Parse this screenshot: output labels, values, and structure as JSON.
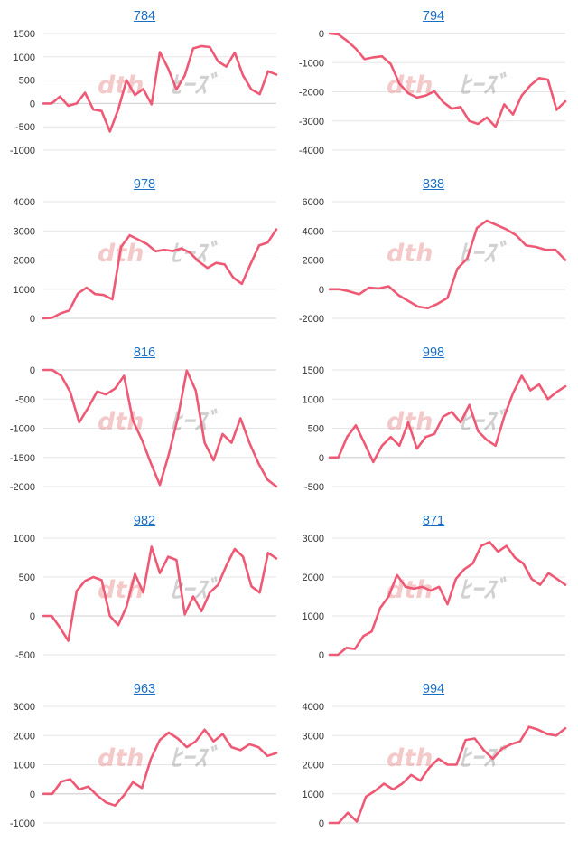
{
  "page": {
    "title": "Price trend chart grid"
  },
  "colors": {
    "line": "#ee5a75",
    "grid": "#e6e6e6",
    "title": "#1a6fc4",
    "label": "#333333"
  },
  "watermark": {
    "left_text": "dth",
    "right_text": "ﾋｰｽﾞ"
  },
  "chart_data": [
    {
      "type": "line",
      "title": "784",
      "yticks": [
        -1000,
        -500,
        0,
        500,
        1000,
        1500
      ],
      "ylim": [
        -1000,
        1500
      ],
      "values": [
        0,
        0,
        150,
        -50,
        0,
        230,
        -130,
        -160,
        -600,
        -130,
        500,
        180,
        310,
        -20,
        1100,
        750,
        300,
        600,
        1180,
        1230,
        1210,
        900,
        790,
        1090,
        600,
        300,
        200,
        690,
        620
      ]
    },
    {
      "type": "line",
      "title": "794",
      "yticks": [
        -4000,
        -3000,
        -2000,
        -1000,
        0
      ],
      "ylim": [
        -4000,
        0
      ],
      "values": [
        0,
        -30,
        -250,
        -520,
        -880,
        -820,
        -780,
        -1050,
        -1720,
        -2050,
        -2200,
        -2130,
        -1980,
        -2350,
        -2580,
        -2520,
        -3000,
        -3100,
        -2880,
        -3200,
        -2430,
        -2780,
        -2130,
        -1780,
        -1530,
        -1580,
        -2620,
        -2330
      ]
    },
    {
      "type": "line",
      "title": "978",
      "yticks": [
        0,
        1000,
        2000,
        3000,
        4000
      ],
      "ylim": [
        0,
        4000
      ],
      "values": [
        0,
        20,
        170,
        270,
        850,
        1050,
        830,
        800,
        650,
        2450,
        2850,
        2700,
        2550,
        2300,
        2350,
        2310,
        2400,
        2250,
        1950,
        1730,
        1900,
        1850,
        1400,
        1180,
        1850,
        2500,
        2600,
        3050
      ]
    },
    {
      "type": "line",
      "title": "838",
      "yticks": [
        -2000,
        0,
        2000,
        4000,
        6000
      ],
      "ylim": [
        -2000,
        6000
      ],
      "values": [
        0,
        0,
        -150,
        -350,
        100,
        50,
        200,
        -400,
        -800,
        -1200,
        -1300,
        -1000,
        -600,
        1400,
        2100,
        4200,
        4700,
        4400,
        4100,
        3700,
        3000,
        2900,
        2700,
        2700,
        2000
      ]
    },
    {
      "type": "line",
      "title": "816",
      "yticks": [
        -2000,
        -1500,
        -1000,
        -500,
        0
      ],
      "ylim": [
        -2000,
        0
      ],
      "values": [
        0,
        0,
        -100,
        -380,
        -900,
        -650,
        -370,
        -420,
        -320,
        -100,
        -870,
        -1200,
        -1600,
        -1970,
        -1450,
        -830,
        -10,
        -350,
        -1250,
        -1550,
        -1100,
        -1250,
        -830,
        -1250,
        -1600,
        -1880,
        -2000
      ]
    },
    {
      "type": "line",
      "title": "998",
      "yticks": [
        -500,
        0,
        500,
        1000,
        1500
      ],
      "ylim": [
        -500,
        1500
      ],
      "values": [
        0,
        0,
        350,
        550,
        240,
        -80,
        200,
        350,
        200,
        600,
        150,
        350,
        400,
        700,
        780,
        600,
        900,
        450,
        300,
        200,
        700,
        1100,
        1400,
        1150,
        1250,
        1000,
        1120,
        1220
      ]
    },
    {
      "type": "line",
      "title": "982",
      "yticks": [
        -500,
        0,
        500,
        1000
      ],
      "ylim": [
        -500,
        1000
      ],
      "values": [
        0,
        0,
        -150,
        -320,
        320,
        450,
        500,
        460,
        0,
        -120,
        120,
        540,
        300,
        890,
        550,
        760,
        720,
        20,
        250,
        60,
        300,
        400,
        650,
        860,
        760,
        380,
        300,
        810,
        740
      ]
    },
    {
      "type": "line",
      "title": "871",
      "yticks": [
        0,
        1000,
        2000,
        3000
      ],
      "ylim": [
        0,
        3000
      ],
      "values": [
        0,
        0,
        180,
        150,
        480,
        600,
        1200,
        1500,
        2050,
        1750,
        1700,
        1750,
        1650,
        1750,
        1300,
        1950,
        2200,
        2350,
        2800,
        2900,
        2650,
        2800,
        2500,
        2350,
        1950,
        1800,
        2100,
        1950,
        1800
      ]
    },
    {
      "type": "line",
      "title": "963",
      "yticks": [
        -1000,
        0,
        1000,
        2000,
        3000
      ],
      "ylim": [
        -1000,
        3000
      ],
      "values": [
        0,
        0,
        420,
        500,
        150,
        250,
        -50,
        -300,
        -400,
        -50,
        400,
        200,
        1200,
        1850,
        2100,
        1900,
        1600,
        1800,
        2200,
        1800,
        2050,
        1600,
        1500,
        1700,
        1600,
        1300,
        1400
      ]
    },
    {
      "type": "line",
      "title": "994",
      "yticks": [
        0,
        1000,
        2000,
        3000,
        4000
      ],
      "ylim": [
        0,
        4000
      ],
      "values": [
        0,
        0,
        350,
        50,
        900,
        1100,
        1350,
        1150,
        1350,
        1650,
        1450,
        1900,
        2200,
        2000,
        2000,
        2850,
        2900,
        2500,
        2200,
        2550,
        2700,
        2800,
        3300,
        3200,
        3050,
        3000,
        3250
      ]
    }
  ]
}
